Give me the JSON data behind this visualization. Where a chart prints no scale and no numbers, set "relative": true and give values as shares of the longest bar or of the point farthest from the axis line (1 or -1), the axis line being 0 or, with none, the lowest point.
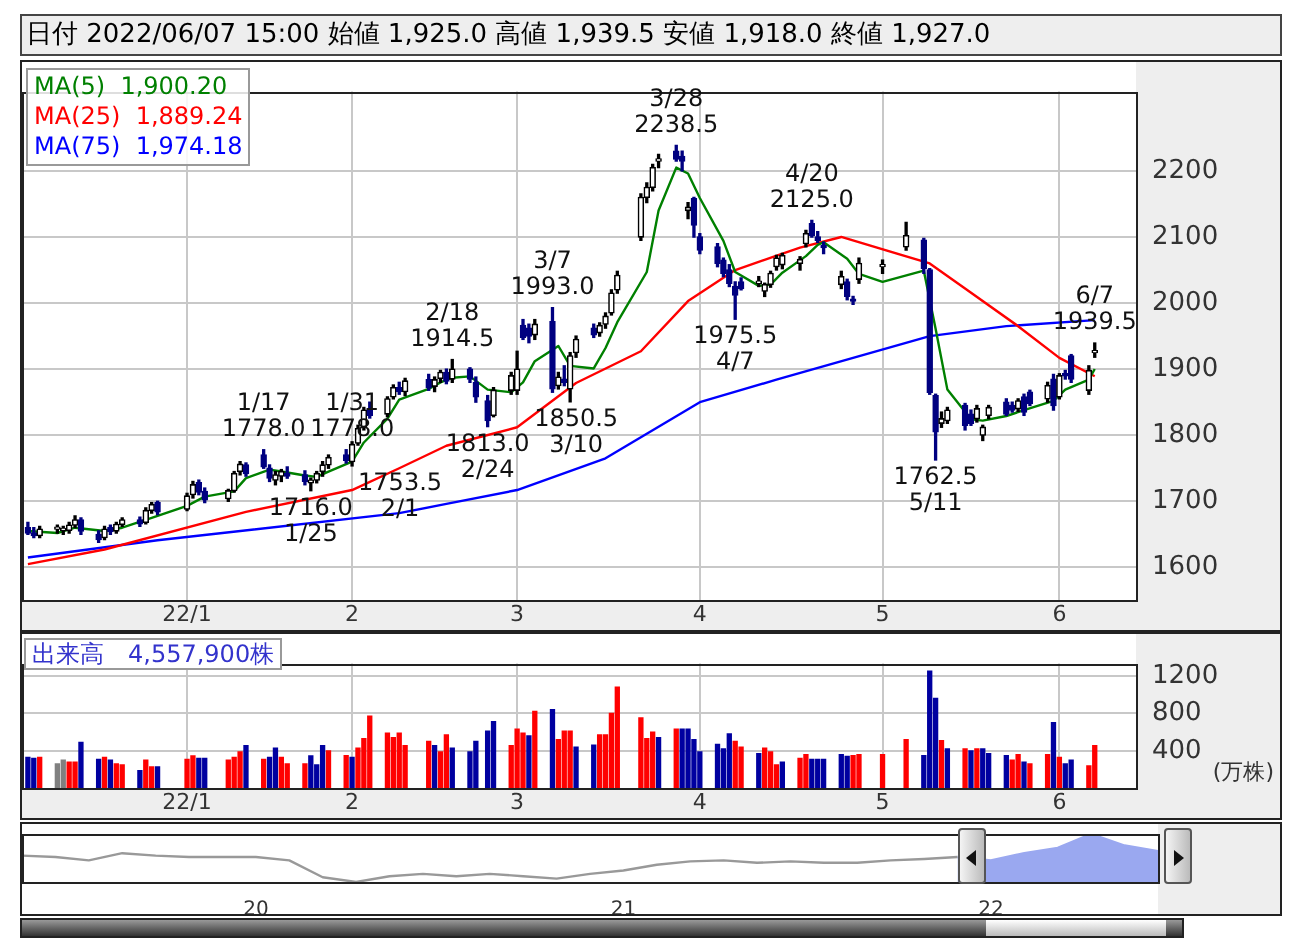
{
  "chart_data": [
    {
      "type": "candlestick",
      "title": "日付 2022/06/07 15:00 始値 1,925.0 高値 1,939.5 安値 1,918.0 終値 1,927.0",
      "colors": [
        "#000080",
        "#000080",
        "#000000",
        "#000000",
        "#000000",
        "#000000",
        "#000000",
        "#000080",
        "#000080",
        "#000000",
        "#000080",
        "#000000",
        "#000000",
        "#000080",
        "#000000",
        "#000000",
        "#000080",
        "#000000",
        "#000000",
        "#000080",
        "#000080",
        "#000000",
        "#000000",
        "#000000",
        "#000080",
        "#000080",
        "#000080",
        "#000000",
        "#000000",
        "#000080",
        "#000080",
        "#000000",
        "#000000",
        "#000000",
        "#000000",
        "#000080",
        "#000000",
        "#000000",
        "#000000",
        "#000080",
        "#000000",
        "#000000",
        "#000080",
        "#000000",
        "#000080",
        "#000000",
        "#000000",
        "#000080",
        "#000000",
        "#000080",
        "#000080",
        "#000080",
        "#000000",
        "#000000",
        "#000000",
        "#000080",
        "#000080",
        "#000000",
        "#000080",
        "#000000",
        "#000080",
        "#000000",
        "#000000",
        "#000080",
        "#000000",
        "#000000",
        "#000000",
        "#000000",
        "#000000",
        "#000000",
        "#000000",
        "#000000",
        "#000080",
        "#000080",
        "#000000",
        "#000080",
        "#000080",
        "#000080",
        "#000080",
        "#000080",
        "#000080",
        "#000080",
        "#000000",
        "#000000",
        "#000000",
        "#000000",
        "#000000",
        "#000000",
        "#000000",
        "#000080",
        "#000080",
        "#000080",
        "#000000",
        "#000080",
        "#000080",
        "#000000",
        "#000000",
        "#000000",
        "#000080",
        "#000080",
        "#000080",
        "#000000",
        "#000000",
        "#000080",
        "#000080",
        "#000000",
        "#000000",
        "#000000",
        "#000080",
        "#000080",
        "#000000",
        "#000080",
        "#000080",
        "#000000",
        "#000080",
        "#000000",
        "#000080",
        "#000080",
        "#000000",
        "#000000"
      ],
      "x": [
        "2021-12-08",
        "2021-12-09",
        "2021-12-10",
        "2021-12-13",
        "2021-12-14",
        "2021-12-15",
        "2021-12-16",
        "2021-12-17",
        "2021-12-20",
        "2021-12-21",
        "2021-12-22",
        "2021-12-23",
        "2021-12-24",
        "2021-12-27",
        "2021-12-28",
        "2021-12-29",
        "2021-12-30",
        "2022-01-04",
        "2022-01-05",
        "2022-01-06",
        "2022-01-07",
        "2022-01-11",
        "2022-01-12",
        "2022-01-13",
        "2022-01-14",
        "2022-01-17",
        "2022-01-18",
        "2022-01-19",
        "2022-01-20",
        "2022-01-21",
        "2022-01-24",
        "2022-01-25",
        "2022-01-26",
        "2022-01-27",
        "2022-01-28",
        "2022-01-31",
        "2022-02-01",
        "2022-02-02",
        "2022-02-03",
        "2022-02-04",
        "2022-02-07",
        "2022-02-08",
        "2022-02-09",
        "2022-02-10",
        "2022-02-14",
        "2022-02-15",
        "2022-02-16",
        "2022-02-17",
        "2022-02-18",
        "2022-02-21",
        "2022-02-22",
        "2022-02-24",
        "2022-02-25",
        "2022-02-28",
        "2022-03-01",
        "2022-03-02",
        "2022-03-03",
        "2022-03-04",
        "2022-03-07",
        "2022-03-08",
        "2022-03-09",
        "2022-03-10",
        "2022-03-11",
        "2022-03-14",
        "2022-03-15",
        "2022-03-16",
        "2022-03-17",
        "2022-03-18",
        "2022-03-22",
        "2022-03-23",
        "2022-03-24",
        "2022-03-25",
        "2022-03-28",
        "2022-03-29",
        "2022-03-30",
        "2022-03-31",
        "2022-04-01",
        "2022-04-04",
        "2022-04-05",
        "2022-04-06",
        "2022-04-07",
        "2022-04-08",
        "2022-04-11",
        "2022-04-12",
        "2022-04-13",
        "2022-04-14",
        "2022-04-15",
        "2022-04-18",
        "2022-04-19",
        "2022-04-20",
        "2022-04-21",
        "2022-04-22",
        "2022-04-25",
        "2022-04-26",
        "2022-04-27",
        "2022-04-28",
        "2022-05-02",
        "2022-05-06",
        "2022-05-09",
        "2022-05-10",
        "2022-05-11",
        "2022-05-12",
        "2022-05-13",
        "2022-05-16",
        "2022-05-17",
        "2022-05-18",
        "2022-05-19",
        "2022-05-20",
        "2022-05-23",
        "2022-05-24",
        "2022-05-25",
        "2022-05-26",
        "2022-05-27",
        "2022-05-30",
        "2022-05-31",
        "2022-06-01",
        "2022-06-02",
        "2022-06-03",
        "2022-06-06",
        "2022-06-07"
      ],
      "ohlc": [
        [
          1660,
          1668,
          1650,
          1652
        ],
        [
          1652,
          1660,
          1645,
          1648
        ],
        [
          1648,
          1662,
          1645,
          1658
        ],
        [
          1658,
          1664,
          1652,
          1658
        ],
        [
          1656,
          1662,
          1650,
          1656
        ],
        [
          1656,
          1668,
          1652,
          1664
        ],
        [
          1664,
          1678,
          1660,
          1672
        ],
        [
          1672,
          1675,
          1650,
          1655
        ],
        [
          1650,
          1655,
          1638,
          1642
        ],
        [
          1645,
          1662,
          1642,
          1658
        ],
        [
          1660,
          1664,
          1650,
          1654
        ],
        [
          1655,
          1668,
          1652,
          1665
        ],
        [
          1665,
          1675,
          1662,
          1672
        ],
        [
          1672,
          1676,
          1662,
          1666
        ],
        [
          1668,
          1690,
          1666,
          1686
        ],
        [
          1686,
          1698,
          1682,
          1695
        ],
        [
          1698,
          1700,
          1680,
          1684
        ],
        [
          1688,
          1712,
          1686,
          1708
        ],
        [
          1710,
          1730,
          1705,
          1725
        ],
        [
          1728,
          1732,
          1710,
          1714
        ],
        [
          1715,
          1720,
          1698,
          1702
        ],
        [
          1704,
          1718,
          1700,
          1716
        ],
        [
          1716,
          1745,
          1714,
          1742
        ],
        [
          1745,
          1760,
          1740,
          1756
        ],
        [
          1755,
          1758,
          1738,
          1742
        ],
        [
          1770,
          1778,
          1750,
          1752
        ],
        [
          1750,
          1755,
          1730,
          1735
        ],
        [
          1732,
          1745,
          1725,
          1740
        ],
        [
          1738,
          1748,
          1730,
          1745
        ],
        [
          1742,
          1752,
          1735,
          1738
        ],
        [
          1740,
          1746,
          1725,
          1730
        ],
        [
          1728,
          1735,
          1716,
          1732
        ],
        [
          1732,
          1745,
          1728,
          1742
        ],
        [
          1745,
          1760,
          1738,
          1755
        ],
        [
          1755,
          1770,
          1750,
          1766
        ],
        [
          1770,
          1778,
          1758,
          1762
        ],
        [
          1760,
          1790,
          1753.5,
          1786
        ],
        [
          1788,
          1815,
          1785,
          1810
        ],
        [
          1812,
          1842,
          1808,
          1838
        ],
        [
          1840,
          1850,
          1826,
          1830
        ],
        [
          1832,
          1858,
          1828,
          1855
        ],
        [
          1858,
          1876,
          1855,
          1872
        ],
        [
          1872,
          1880,
          1862,
          1866
        ],
        [
          1866,
          1886,
          1860,
          1882
        ],
        [
          1884,
          1892,
          1868,
          1872
        ],
        [
          1874,
          1888,
          1866,
          1884
        ],
        [
          1886,
          1898,
          1880,
          1895
        ],
        [
          1895,
          1900,
          1878,
          1882
        ],
        [
          1885,
          1914.5,
          1880,
          1900
        ],
        [
          1900,
          1902,
          1880,
          1885
        ],
        [
          1880,
          1888,
          1850,
          1858
        ],
        [
          1852,
          1860,
          1813,
          1822
        ],
        [
          1830,
          1872,
          1828,
          1868
        ],
        [
          1868,
          1895,
          1862,
          1890
        ],
        [
          1868,
          1927,
          1862,
          1900
        ],
        [
          1966,
          1975,
          1945,
          1948
        ],
        [
          1962,
          1968,
          1940,
          1950
        ],
        [
          1952,
          1975,
          1945,
          1968
        ],
        [
          1972,
          1993,
          1865,
          1870
        ],
        [
          1875,
          1895,
          1870,
          1888
        ],
        [
          1885,
          1905,
          1875,
          1880
        ],
        [
          1870,
          1925,
          1850.5,
          1920
        ],
        [
          1925,
          1950,
          1918,
          1945
        ],
        [
          1962,
          1968,
          1948,
          1952
        ],
        [
          1955,
          1970,
          1950,
          1966
        ],
        [
          1968,
          1985,
          1962,
          1980
        ],
        [
          1985,
          2020,
          1982,
          2015
        ],
        [
          2020,
          2048,
          2015,
          2042
        ],
        [
          2100,
          2165,
          2095,
          2160
        ],
        [
          2160,
          2182,
          2152,
          2175
        ],
        [
          2175,
          2210,
          2170,
          2205
        ],
        [
          2215,
          2225,
          2205,
          2218
        ],
        [
          2230,
          2238.5,
          2215,
          2218
        ],
        [
          2222,
          2230,
          2200,
          2215
        ],
        [
          2140,
          2152,
          2128,
          2145
        ],
        [
          2158,
          2160,
          2100,
          2118
        ],
        [
          2100,
          2105,
          2075,
          2080
        ],
        [
          2085,
          2090,
          2055,
          2060
        ],
        [
          2065,
          2068,
          2040,
          2045
        ],
        [
          2050,
          2058,
          2025,
          2030
        ],
        [
          2025,
          2032,
          1975.5,
          2012
        ],
        [
          2032,
          2038,
          2020,
          2022
        ],
        [
          2030,
          2040,
          2025,
          2032
        ],
        [
          2018,
          2030,
          2010,
          2028
        ],
        [
          2028,
          2048,
          2024,
          2045
        ],
        [
          2055,
          2072,
          2050,
          2068
        ],
        [
          2058,
          2075,
          2052,
          2072
        ],
        [
          2060,
          2070,
          2050,
          2066
        ],
        [
          2090,
          2110,
          2085,
          2105
        ],
        [
          2120,
          2125,
          2100,
          2102
        ],
        [
          2100,
          2108,
          2092,
          2095
        ],
        [
          2085,
          2092,
          2075,
          2084
        ],
        [
          2028,
          2048,
          2022,
          2040
        ],
        [
          2032,
          2036,
          2005,
          2010
        ],
        [
          2005,
          2010,
          1998,
          2003
        ],
        [
          2036,
          2068,
          2030,
          2060
        ],
        [
          2055,
          2065,
          2045,
          2055
        ],
        [
          2085,
          2122,
          2080,
          2102
        ],
        [
          2095,
          2098,
          2045,
          2052
        ],
        [
          2050,
          2052,
          1862,
          1865
        ],
        [
          1860,
          1862,
          1762.5,
          1805
        ],
        [
          1818,
          1835,
          1812,
          1825
        ],
        [
          1822,
          1842,
          1818,
          1838
        ],
        [
          1845,
          1848,
          1808,
          1815
        ],
        [
          1832,
          1838,
          1815,
          1818
        ],
        [
          1825,
          1845,
          1820,
          1840
        ],
        [
          1800,
          1815,
          1792,
          1812
        ],
        [
          1830,
          1845,
          1825,
          1842
        ],
        [
          1850,
          1855,
          1830,
          1832
        ],
        [
          1845,
          1850,
          1835,
          1838
        ],
        [
          1840,
          1855,
          1836,
          1852
        ],
        [
          1858,
          1862,
          1830,
          1835
        ],
        [
          1865,
          1868,
          1845,
          1848
        ],
        [
          1855,
          1880,
          1850,
          1875
        ],
        [
          1885,
          1892,
          1838,
          1845
        ],
        [
          1858,
          1893,
          1855,
          1890
        ],
        [
          1892,
          1898,
          1885,
          1890
        ],
        [
          1920,
          1922,
          1880,
          1885
        ],
        [
          1868,
          1905,
          1862,
          1898
        ],
        [
          1925,
          1939.5,
          1918,
          1927
        ]
      ],
      "series": [
        {
          "type": "line",
          "name": "MA(5)  1,900.20",
          "color": "#008000",
          "x": [
            "2021-12-08",
            "2021-12-13",
            "2021-12-16",
            "2021-12-21",
            "2021-12-24",
            "2021-12-29",
            "2022-01-04",
            "2022-01-07",
            "2022-01-12",
            "2022-01-14",
            "2022-01-18",
            "2022-01-20",
            "2022-01-24",
            "2022-01-26",
            "2022-01-28",
            "2022-02-01",
            "2022-02-03",
            "2022-02-07",
            "2022-02-09",
            "2022-02-14",
            "2022-02-16",
            "2022-02-18",
            "2022-02-21",
            "2022-02-24",
            "2022-02-28",
            "2022-03-02",
            "2022-03-04",
            "2022-03-08",
            "2022-03-10",
            "2022-03-14",
            "2022-03-16",
            "2022-03-18",
            "2022-03-23",
            "2022-03-25",
            "2022-03-28",
            "2022-03-30",
            "2022-04-01",
            "2022-04-05",
            "2022-04-07",
            "2022-04-11",
            "2022-04-13",
            "2022-04-15",
            "2022-04-19",
            "2022-04-21",
            "2022-04-22",
            "2022-04-26",
            "2022-04-28",
            "2022-05-02",
            "2022-05-09",
            "2022-05-11",
            "2022-05-13",
            "2022-05-17",
            "2022-05-19",
            "2022-05-23",
            "2022-05-26",
            "2022-05-31",
            "2022-06-02",
            "2022-06-06",
            "2022-06-07"
          ],
          "values": [
            1655,
            1652,
            1660,
            1655,
            1660,
            1675,
            1693,
            1707,
            1715,
            1735,
            1748,
            1745,
            1739,
            1737,
            1745,
            1760,
            1789,
            1825,
            1854,
            1870,
            1880,
            1887,
            1889,
            1869,
            1865,
            1880,
            1912,
            1935,
            1905,
            1901,
            1932,
            1971,
            2047,
            2140,
            2205,
            2196,
            2159,
            2094,
            2047,
            2026,
            2028,
            2046,
            2071,
            2088,
            2092,
            2067,
            2044,
            2032,
            2049,
            1961,
            1869,
            1824,
            1822,
            1829,
            1838,
            1852,
            1869,
            1884,
            1900.2
          ]
        },
        {
          "type": "line",
          "name": "MA(25)  1,889.24",
          "color": "#ff0000",
          "x": [
            "2021-12-08",
            "2021-12-21",
            "2022-01-14",
            "2022-02-01",
            "2022-02-09",
            "2022-02-17",
            "2022-03-01",
            "2022-03-11",
            "2022-03-22",
            "2022-03-30",
            "2022-04-07",
            "2022-04-18",
            "2022-04-25",
            "2022-05-10",
            "2022-05-16",
            "2022-05-25",
            "2022-06-01",
            "2022-06-07"
          ],
          "values": [
            1605,
            1627,
            1684,
            1717,
            1750,
            1784,
            1812,
            1879,
            1927,
            2003,
            2050,
            2084,
            2100,
            2060,
            2022,
            1965,
            1917,
            1889.24
          ]
        },
        {
          "type": "line",
          "name": "MA(75)  1,974.18",
          "color": "#0000ff",
          "x": [
            "2021-12-08",
            "2021-12-30",
            "2022-02-09",
            "2022-02-17",
            "2022-03-01",
            "2022-03-16",
            "2022-04-01",
            "2022-04-14",
            "2022-05-10",
            "2022-05-23",
            "2022-06-07"
          ],
          "values": [
            1615,
            1641,
            1682,
            1696,
            1717,
            1765,
            1850,
            1884,
            1950,
            1965,
            1974.18
          ]
        }
      ],
      "xlim": [
        "2021-12-07",
        "2022-06-14"
      ],
      "xticks": [
        {
          "value": "2022-01-04",
          "label": "22/1"
        },
        {
          "value": "2022-02-01",
          "label": "2"
        },
        {
          "value": "2022-03-01",
          "label": "3"
        },
        {
          "value": "2022-04-01",
          "label": "4"
        },
        {
          "value": "2022-05-02",
          "label": "5"
        },
        {
          "value": "2022-06-01",
          "label": "6"
        }
      ],
      "ylim": [
        1550,
        2320
      ],
      "yticks": [
        1600,
        1700,
        1800,
        1900,
        2000,
        2100,
        2200
      ],
      "grid": true,
      "legend": "top left",
      "annotations": [
        {
          "text": "1/17\n1778.0",
          "x": "2022-01-17",
          "y": 1778
        },
        {
          "text": "1716.0\n1/25",
          "x": "2022-01-25",
          "y": 1716
        },
        {
          "text": "1/31\n1778.0",
          "x": "2022-01-31",
          "y": 1778
        },
        {
          "text": "1753.5\n2/1",
          "x": "2022-02-01",
          "y": 1753.5
        },
        {
          "text": "2/18\n1914.5",
          "x": "2022-02-18",
          "y": 1914.5
        },
        {
          "text": "1813.0\n2/24",
          "x": "2022-02-24",
          "y": 1813
        },
        {
          "text": "3/7\n1993.0",
          "x": "2022-03-07",
          "y": 1993
        },
        {
          "text": "1850.5\n3/10",
          "x": "2022-03-10",
          "y": 1850.5
        },
        {
          "text": "3/28\n2238.5",
          "x": "2022-03-28",
          "y": 2238.5
        },
        {
          "text": "1975.5\n4/7",
          "x": "2022-04-07",
          "y": 1975.5
        },
        {
          "text": "4/20\n2125.0",
          "x": "2022-04-20",
          "y": 2125
        },
        {
          "text": "1762.5\n5/11",
          "x": "2022-05-11",
          "y": 1762.5
        },
        {
          "text": "6/7\n1939.5",
          "x": "2022-06-07",
          "y": 1939.5
        }
      ]
    },
    {
      "type": "bar",
      "title": "出来高　4,557,900株",
      "ylabel": "(万株)",
      "x": [
        "2021-12-08",
        "2021-12-09",
        "2021-12-10",
        "2021-12-13",
        "2021-12-14",
        "2021-12-15",
        "2021-12-16",
        "2021-12-17",
        "2021-12-20",
        "2021-12-21",
        "2021-12-22",
        "2021-12-23",
        "2021-12-24",
        "2021-12-27",
        "2021-12-28",
        "2021-12-29",
        "2021-12-30",
        "2022-01-04",
        "2022-01-05",
        "2022-01-06",
        "2022-01-07",
        "2022-01-11",
        "2022-01-12",
        "2022-01-13",
        "2022-01-14",
        "2022-01-17",
        "2022-01-18",
        "2022-01-19",
        "2022-01-20",
        "2022-01-21",
        "2022-01-24",
        "2022-01-25",
        "2022-01-26",
        "2022-01-27",
        "2022-01-28",
        "2022-01-31",
        "2022-02-01",
        "2022-02-02",
        "2022-02-03",
        "2022-02-04",
        "2022-02-07",
        "2022-02-08",
        "2022-02-09",
        "2022-02-10",
        "2022-02-14",
        "2022-02-15",
        "2022-02-16",
        "2022-02-17",
        "2022-02-18",
        "2022-02-21",
        "2022-02-22",
        "2022-02-24",
        "2022-02-25",
        "2022-02-28",
        "2022-03-01",
        "2022-03-02",
        "2022-03-03",
        "2022-03-04",
        "2022-03-07",
        "2022-03-08",
        "2022-03-09",
        "2022-03-10",
        "2022-03-11",
        "2022-03-14",
        "2022-03-15",
        "2022-03-16",
        "2022-03-17",
        "2022-03-18",
        "2022-03-22",
        "2022-03-23",
        "2022-03-24",
        "2022-03-25",
        "2022-03-28",
        "2022-03-29",
        "2022-03-30",
        "2022-03-31",
        "2022-04-01",
        "2022-04-04",
        "2022-04-05",
        "2022-04-06",
        "2022-04-07",
        "2022-04-08",
        "2022-04-11",
        "2022-04-12",
        "2022-04-13",
        "2022-04-14",
        "2022-04-15",
        "2022-04-18",
        "2022-04-19",
        "2022-04-20",
        "2022-04-21",
        "2022-04-22",
        "2022-04-25",
        "2022-04-26",
        "2022-04-27",
        "2022-04-28",
        "2022-05-02",
        "2022-05-06",
        "2022-05-09",
        "2022-05-10",
        "2022-05-11",
        "2022-05-12",
        "2022-05-13",
        "2022-05-16",
        "2022-05-17",
        "2022-05-18",
        "2022-05-19",
        "2022-05-20",
        "2022-05-23",
        "2022-05-24",
        "2022-05-25",
        "2022-05-26",
        "2022-05-27",
        "2022-05-30",
        "2022-05-31",
        "2022-06-01",
        "2022-06-02",
        "2022-06-03",
        "2022-06-06",
        "2022-06-07"
      ],
      "values": [
        330,
        320,
        330,
        260,
        300,
        280,
        280,
        490,
        310,
        330,
        300,
        260,
        250,
        190,
        300,
        230,
        230,
        310,
        345,
        320,
        320,
        300,
        330,
        390,
        455,
        310,
        330,
        430,
        330,
        260,
        260,
        345,
        250,
        455,
        400,
        350,
        330,
        430,
        530,
        770,
        590,
        540,
        590,
        455,
        500,
        455,
        390,
        570,
        430,
        390,
        500,
        610,
        710,
        455,
        630,
        590,
        560,
        820,
        840,
        520,
        610,
        610,
        440,
        460,
        570,
        570,
        800,
        1080,
        750,
        530,
        600,
        540,
        630,
        630,
        630,
        520,
        390,
        470,
        420,
        580,
        500,
        440,
        370,
        430,
        390,
        250,
        280,
        320,
        360,
        310,
        310,
        310,
        360,
        340,
        350,
        360,
        360,
        520,
        350,
        1250,
        960,
        510,
        420,
        420,
        400,
        420,
        420,
        370,
        350,
        300,
        360,
        280,
        260,
        360,
        700,
        330,
        260,
        300,
        240,
        455.79
      ],
      "colors": [
        "#0000a0",
        "#0000a0",
        "#ff0000",
        "#808080",
        "#808080",
        "#ff0000",
        "#ff0000",
        "#0000a0",
        "#0000a0",
        "#ff0000",
        "#0000a0",
        "#ff0000",
        "#ff0000",
        "#0000a0",
        "#ff0000",
        "#ff0000",
        "#0000a0",
        "#ff0000",
        "#ff0000",
        "#0000a0",
        "#0000a0",
        "#ff0000",
        "#ff0000",
        "#ff0000",
        "#0000a0",
        "#ff0000",
        "#0000a0",
        "#0000a0",
        "#ff0000",
        "#ff0000",
        "#ff0000",
        "#0000a0",
        "#0000a0",
        "#0000a0",
        "#ff0000",
        "#ff0000",
        "#0000a0",
        "#ff0000",
        "#ff0000",
        "#ff0000",
        "#ff0000",
        "#ff0000",
        "#ff0000",
        "#ff0000",
        "#ff0000",
        "#0000a0",
        "#ff0000",
        "#ff0000",
        "#0000a0",
        "#0000a0",
        "#0000a0",
        "#0000a0",
        "#0000a0",
        "#ff0000",
        "#ff0000",
        "#ff0000",
        "#0000a0",
        "#ff0000",
        "#0000a0",
        "#ff0000",
        "#ff0000",
        "#ff0000",
        "#0000a0",
        "#0000a0",
        "#ff0000",
        "#ff0000",
        "#ff0000",
        "#ff0000",
        "#ff0000",
        "#ff0000",
        "#ff0000",
        "#0000a0",
        "#ff0000",
        "#0000a0",
        "#0000a0",
        "#0000a0",
        "#0000a0",
        "#0000a0",
        "#0000a0",
        "#0000a0",
        "#ff0000",
        "#ff0000",
        "#0000a0",
        "#ff0000",
        "#ff0000",
        "#ff0000",
        "#0000a0",
        "#ff0000",
        "#ff0000",
        "#0000a0",
        "#0000a0",
        "#0000a0",
        "#0000a0",
        "#0000a0",
        "#ff0000",
        "#ff0000",
        "#ff0000",
        "#ff0000",
        "#0000a0",
        "#0000a0",
        "#0000a0",
        "#ff0000",
        "#0000a0",
        "#ff0000",
        "#0000a0",
        "#ff0000",
        "#0000a0",
        "#0000a0",
        "#0000a0",
        "#ff0000",
        "#ff0000",
        "#0000a0",
        "#ff0000",
        "#ff0000",
        "#0000a0",
        "#ff0000",
        "#0000a0",
        "#0000a0",
        "#ff0000",
        "#ff0000"
      ],
      "xlim": [
        "2021-12-07",
        "2022-06-14"
      ],
      "xticks": [
        {
          "value": "2022-01-04",
          "label": "22/1"
        },
        {
          "value": "2022-02-01",
          "label": "2"
        },
        {
          "value": "2022-03-01",
          "label": "3"
        },
        {
          "value": "2022-04-01",
          "label": "4"
        },
        {
          "value": "2022-05-02",
          "label": "5"
        },
        {
          "value": "2022-06-01",
          "label": "6"
        }
      ],
      "ylim": [
        0,
        1330
      ],
      "yticks": [
        400,
        800,
        1200
      ],
      "grid": true
    },
    {
      "type": "line",
      "relative": true,
      "tick_labels": "x",
      "categories": [
        null,
        null,
        null,
        null,
        null,
        null,
        null,
        "20",
        null,
        null,
        null,
        null,
        null,
        null,
        null,
        null,
        null,
        null,
        "21",
        null,
        null,
        null,
        null,
        null,
        null,
        null,
        null,
        null,
        null,
        "22",
        null,
        null,
        null,
        null,
        null
      ],
      "series": [
        {
          "type": "line",
          "color": "#999999",
          "values": [
            0.55,
            0.52,
            0.45,
            0.6,
            0.55,
            0.52,
            0.52,
            0.52,
            0.45,
            0.1,
            0,
            0.12,
            0.17,
            0.12,
            0.17,
            0.12,
            0.07,
            0.17,
            0.24,
            0.36,
            0.43,
            0.45,
            0.4,
            0.43,
            0.4,
            0.4,
            0.45,
            0.48,
            0.52,
            null,
            null,
            null,
            null,
            null,
            null
          ]
        },
        {
          "type": "area",
          "color": "#9aa8f0",
          "values": [
            null,
            null,
            null,
            null,
            null,
            null,
            null,
            null,
            null,
            null,
            null,
            null,
            null,
            null,
            null,
            null,
            null,
            null,
            null,
            null,
            null,
            null,
            null,
            null,
            null,
            null,
            null,
            null,
            0.52,
            0.45,
            0.6,
            0.71,
            1,
            0.76,
            0.64
          ]
        }
      ]
    }
  ]
}
